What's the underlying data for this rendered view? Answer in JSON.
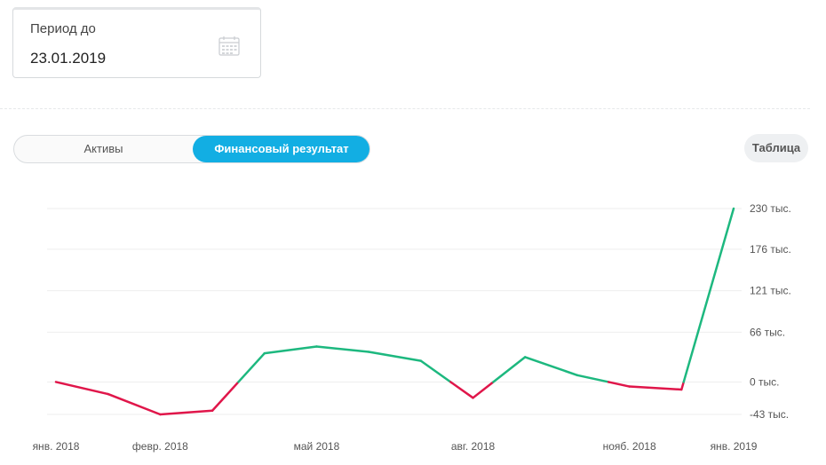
{
  "period": {
    "label": "Период до",
    "value": "23.01.2019",
    "icon": "calendar-icon"
  },
  "toggle": {
    "options": [
      "Активы",
      "Финансовый результат"
    ],
    "active": "Финансовый результат",
    "accent_color": "#12aee3"
  },
  "table_button": {
    "label": "Таблица"
  },
  "chart_data": {
    "type": "line",
    "x": [
      "янв. 2018",
      "",
      "февр. 2018",
      "",
      "",
      "май 2018",
      "",
      "",
      "авг. 2018",
      "",
      "",
      "нояб. 2018",
      "",
      "янв. 2019"
    ],
    "x_tick_labels": [
      "янв. 2018",
      "февр. 2018",
      "май 2018",
      "авг. 2018",
      "нояб. 2018"
    ],
    "values": [
      0,
      -16,
      -43,
      -38,
      38,
      47,
      40,
      28,
      -21,
      33,
      9,
      -6,
      -10,
      230
    ],
    "y_ticks": [
      230,
      176,
      121,
      66,
      0,
      -43
    ],
    "y_tick_labels": [
      "230 тыс.",
      "176 тыс.",
      "121 тыс.",
      "66 тыс.",
      "0 тыс.",
      "-43 тыс."
    ],
    "ylim": [
      -43,
      230
    ],
    "grid": true,
    "colors": {
      "positive": "#1db87f",
      "negative": "#e0164a",
      "grid": "#eeeeee"
    }
  }
}
